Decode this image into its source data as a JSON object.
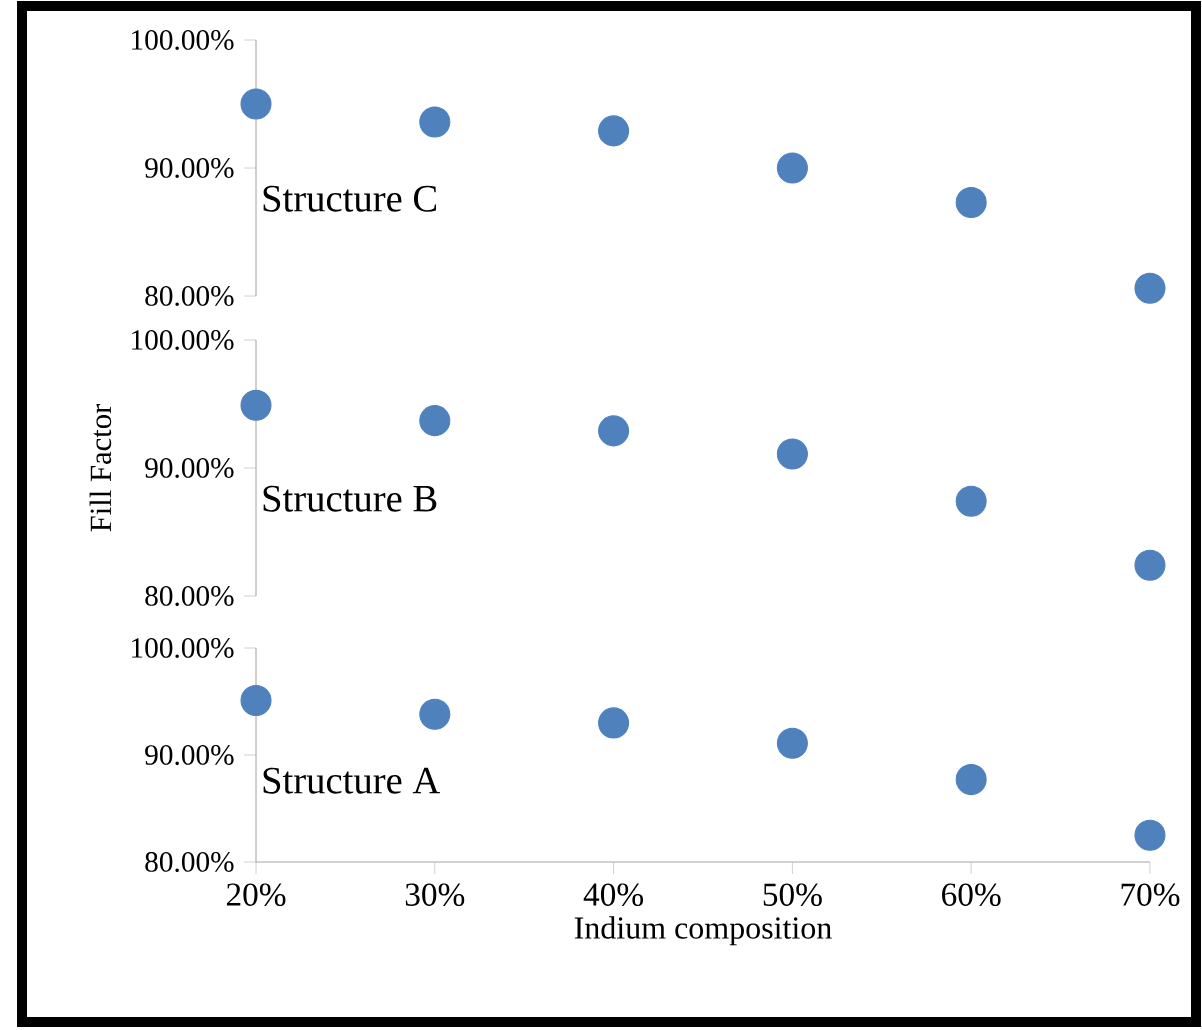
{
  "chart_data": [
    {
      "type": "scatter",
      "annotations": [
        "Structure C"
      ],
      "x": [
        20,
        30,
        40,
        50,
        60,
        70
      ],
      "values": [
        95.0,
        93.6,
        92.9,
        90.0,
        87.3,
        80.6
      ],
      "color": "#4f81bd",
      "marker": "circle",
      "xlim": [
        20,
        70
      ],
      "ylim": [
        80,
        100
      ],
      "yticks": [
        {
          "value": 80,
          "label": "80.00%"
        },
        {
          "value": 90,
          "label": "90.00%"
        },
        {
          "value": 100,
          "label": "100.00%"
        }
      ],
      "tick_labels": "y"
    },
    {
      "type": "scatter",
      "ylabel": "Fill Factor",
      "annotations": [
        "Structure B"
      ],
      "x": [
        20,
        30,
        40,
        50,
        60,
        70
      ],
      "values": [
        94.9,
        93.7,
        92.9,
        91.1,
        87.4,
        82.4
      ],
      "color": "#4f81bd",
      "marker": "circle",
      "xlim": [
        20,
        70
      ],
      "ylim": [
        80,
        100
      ],
      "yticks": [
        {
          "value": 80,
          "label": "80.00%"
        },
        {
          "value": 90,
          "label": "90.00%"
        },
        {
          "value": 100,
          "label": "100.00%"
        }
      ],
      "tick_labels": "y"
    },
    {
      "type": "scatter",
      "xlabel": "Indium composition",
      "annotations": [
        "Structure A"
      ],
      "x": [
        20,
        30,
        40,
        50,
        60,
        70
      ],
      "values": [
        95.1,
        93.8,
        93.0,
        91.1,
        87.7,
        82.5
      ],
      "color": "#4f81bd",
      "marker": "circle",
      "xlim": [
        20,
        70
      ],
      "ylim": [
        80,
        100
      ],
      "xticks": [
        {
          "value": 20,
          "label": "20%"
        },
        {
          "value": 30,
          "label": "30%"
        },
        {
          "value": 40,
          "label": "40%"
        },
        {
          "value": 50,
          "label": "50%"
        },
        {
          "value": 60,
          "label": "60%"
        },
        {
          "value": 70,
          "label": "70%"
        }
      ],
      "yticks": [
        {
          "value": 80,
          "label": "80.00%"
        },
        {
          "value": 90,
          "label": "90.00%"
        },
        {
          "value": 100,
          "label": "100.00%"
        }
      ]
    }
  ]
}
